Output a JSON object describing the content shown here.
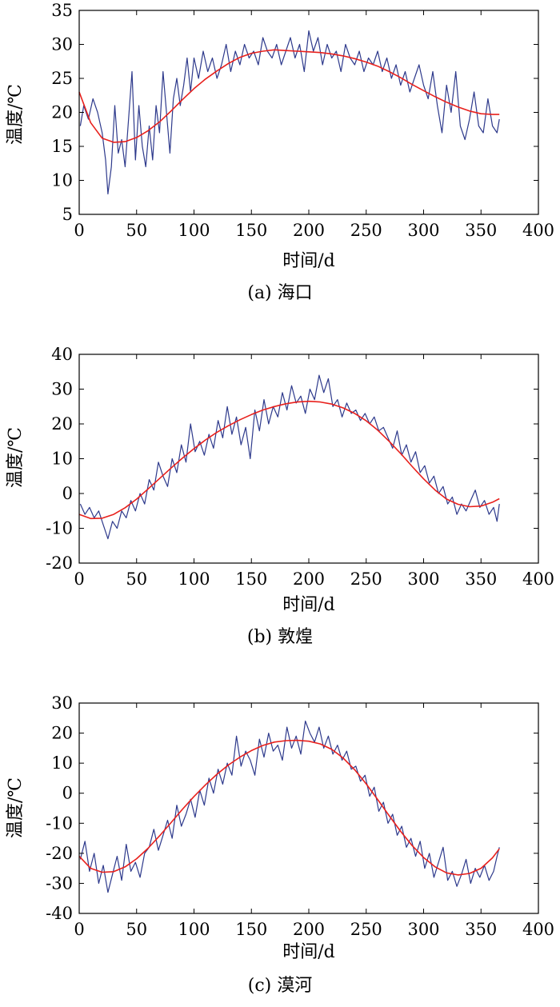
{
  "chart_data": [
    {
      "type": "line",
      "caption": "(a) 海口",
      "xlabel": "时间/d",
      "ylabel": "温度/℃",
      "xlim": [
        0,
        400
      ],
      "ylim": [
        5,
        35
      ],
      "xticks": [
        0,
        50,
        100,
        150,
        200,
        250,
        300,
        350,
        400
      ],
      "yticks": [
        5,
        10,
        15,
        20,
        25,
        30,
        35
      ],
      "grid": false,
      "series": [
        {
          "style": "daily",
          "color": "#2e3a8c",
          "x": [
            1,
            4,
            8,
            12,
            16,
            20,
            23,
            25,
            28,
            31,
            34,
            37,
            40,
            43,
            46,
            49,
            52,
            55,
            58,
            61,
            64,
            67,
            70,
            73,
            76,
            79,
            82,
            85,
            88,
            91,
            94,
            97,
            100,
            104,
            108,
            112,
            116,
            120,
            124,
            128,
            132,
            136,
            140,
            144,
            148,
            152,
            156,
            160,
            164,
            168,
            172,
            176,
            180,
            184,
            188,
            192,
            196,
            200,
            204,
            208,
            212,
            216,
            220,
            224,
            228,
            232,
            236,
            240,
            244,
            248,
            252,
            256,
            260,
            264,
            268,
            272,
            276,
            280,
            284,
            288,
            292,
            296,
            300,
            304,
            308,
            312,
            316,
            320,
            324,
            328,
            332,
            336,
            340,
            344,
            348,
            352,
            356,
            360,
            364,
            366
          ],
          "y": [
            18,
            21,
            19,
            22,
            20,
            17,
            13,
            8,
            12,
            21,
            14,
            16,
            12,
            19,
            26,
            13,
            21,
            15,
            12,
            18,
            13,
            21,
            17,
            26,
            20,
            14,
            22,
            25,
            21,
            24,
            28,
            23,
            28,
            25,
            29,
            26,
            28,
            25,
            27,
            30,
            26,
            29,
            27,
            30,
            28,
            29,
            27,
            31,
            29,
            28,
            30,
            27,
            29,
            31,
            28,
            30,
            26,
            32,
            29,
            31,
            27,
            30,
            28,
            29,
            26,
            30,
            28,
            27,
            29,
            26,
            28,
            27,
            29,
            26,
            28,
            25,
            27,
            24,
            26,
            23,
            25,
            27,
            24,
            22,
            26,
            21,
            17,
            24,
            20,
            26,
            18,
            16,
            19,
            23,
            18,
            17,
            22,
            18,
            17,
            19
          ]
        },
        {
          "style": "fit",
          "color": "#e8201c",
          "x": [
            0,
            10,
            20,
            30,
            40,
            50,
            60,
            70,
            80,
            90,
            100,
            110,
            120,
            130,
            140,
            150,
            160,
            170,
            180,
            190,
            200,
            210,
            220,
            230,
            240,
            250,
            260,
            270,
            280,
            290,
            300,
            310,
            320,
            330,
            340,
            350,
            360,
            366
          ],
          "y": [
            23,
            18.5,
            16.2,
            15.6,
            15.7,
            16.3,
            17.3,
            18.6,
            20.2,
            21.9,
            23.5,
            24.9,
            26.1,
            27.2,
            28.1,
            28.7,
            29.0,
            29.2,
            29.1,
            29.0,
            28.9,
            28.8,
            28.6,
            28.3,
            27.9,
            27.4,
            26.8,
            26.0,
            25.1,
            24.1,
            23.2,
            22.3,
            21.5,
            20.8,
            20.2,
            19.8,
            19.7,
            19.7
          ]
        }
      ]
    },
    {
      "type": "line",
      "caption": "(b) 敦煌",
      "xlabel": "时间/d",
      "ylabel": "温度/℃",
      "xlim": [
        0,
        400
      ],
      "ylim": [
        -20,
        40
      ],
      "xticks": [
        0,
        50,
        100,
        150,
        200,
        250,
        300,
        350,
        400
      ],
      "yticks": [
        -20,
        -10,
        0,
        10,
        20,
        30,
        40
      ],
      "grid": false,
      "series": [
        {
          "style": "daily",
          "color": "#2e3a8c",
          "x": [
            1,
            5,
            9,
            13,
            17,
            21,
            25,
            29,
            33,
            37,
            41,
            45,
            49,
            53,
            57,
            61,
            65,
            69,
            73,
            77,
            81,
            85,
            89,
            93,
            97,
            101,
            105,
            109,
            113,
            117,
            121,
            125,
            129,
            133,
            137,
            141,
            145,
            149,
            153,
            157,
            161,
            165,
            169,
            173,
            177,
            181,
            185,
            189,
            193,
            197,
            201,
            205,
            209,
            213,
            217,
            221,
            225,
            229,
            233,
            237,
            241,
            245,
            249,
            253,
            257,
            261,
            265,
            269,
            273,
            277,
            281,
            285,
            289,
            293,
            297,
            301,
            305,
            309,
            313,
            317,
            321,
            325,
            329,
            333,
            337,
            341,
            345,
            349,
            353,
            357,
            361,
            364,
            366
          ],
          "y": [
            -3,
            -6,
            -4,
            -7,
            -5,
            -9,
            -13,
            -8,
            -10,
            -5,
            -7,
            -2,
            -5,
            0,
            -3,
            4,
            1,
            9,
            5,
            2,
            10,
            6,
            14,
            9,
            20,
            12,
            15,
            11,
            17,
            13,
            21,
            16,
            25,
            17,
            22,
            14,
            19,
            10,
            24,
            18,
            27,
            20,
            25,
            22,
            29,
            24,
            31,
            26,
            28,
            23,
            30,
            27,
            34,
            29,
            33,
            25,
            27,
            22,
            26,
            23,
            24,
            21,
            23,
            20,
            22,
            18,
            19,
            16,
            13,
            18,
            11,
            14,
            9,
            12,
            6,
            8,
            3,
            5,
            0,
            2,
            -3,
            -1,
            -6,
            -3,
            -5,
            -2,
            1,
            -4,
            -2,
            -6,
            -4,
            -8,
            -3
          ]
        },
        {
          "style": "fit",
          "color": "#e8201c",
          "x": [
            0,
            10,
            20,
            30,
            40,
            50,
            60,
            70,
            80,
            90,
            100,
            110,
            120,
            130,
            140,
            150,
            160,
            170,
            180,
            190,
            200,
            210,
            220,
            230,
            240,
            250,
            260,
            270,
            280,
            290,
            300,
            310,
            320,
            330,
            340,
            350,
            360,
            366
          ],
          "y": [
            -6,
            -7.2,
            -7.1,
            -6.0,
            -4.1,
            -1.6,
            1.3,
            4.3,
            7.3,
            10.2,
            12.9,
            15.4,
            17.6,
            19.5,
            21.2,
            22.7,
            24.0,
            25.0,
            25.8,
            26.3,
            26.5,
            26.3,
            25.7,
            24.6,
            23.0,
            20.9,
            18.2,
            15.0,
            11.5,
            7.8,
            4.2,
            1.0,
            -1.6,
            -3.1,
            -3.8,
            -3.6,
            -2.5,
            -1.5
          ]
        }
      ]
    },
    {
      "type": "line",
      "caption": "(c) 漠河",
      "xlabel": "时间/d",
      "ylabel": "温度/℃",
      "xlim": [
        0,
        400
      ],
      "ylim": [
        -40,
        30
      ],
      "xticks": [
        0,
        50,
        100,
        150,
        200,
        250,
        300,
        350,
        400
      ],
      "yticks": [
        -40,
        -30,
        -20,
        -10,
        0,
        10,
        20,
        30
      ],
      "grid": false,
      "series": [
        {
          "style": "daily",
          "color": "#2e3a8c",
          "x": [
            1,
            5,
            9,
            13,
            17,
            21,
            25,
            29,
            33,
            37,
            41,
            45,
            49,
            53,
            57,
            61,
            65,
            69,
            73,
            77,
            81,
            85,
            89,
            93,
            97,
            101,
            105,
            109,
            113,
            117,
            121,
            125,
            129,
            133,
            137,
            141,
            145,
            149,
            153,
            157,
            161,
            165,
            169,
            173,
            177,
            181,
            185,
            189,
            193,
            197,
            201,
            205,
            209,
            213,
            217,
            221,
            225,
            229,
            233,
            237,
            241,
            245,
            249,
            253,
            257,
            261,
            265,
            269,
            273,
            277,
            281,
            285,
            289,
            293,
            297,
            301,
            305,
            309,
            313,
            317,
            321,
            325,
            329,
            333,
            337,
            341,
            345,
            349,
            353,
            357,
            361,
            364,
            366
          ],
          "y": [
            -22,
            -16,
            -26,
            -20,
            -30,
            -24,
            -33,
            -27,
            -21,
            -29,
            -17,
            -26,
            -23,
            -28,
            -20,
            -18,
            -12,
            -19,
            -14,
            -9,
            -15,
            -4,
            -11,
            -7,
            -2,
            -8,
            1,
            -4,
            5,
            0,
            8,
            3,
            10,
            6,
            19,
            9,
            14,
            11,
            6,
            18,
            12,
            20,
            14,
            16,
            11,
            22,
            15,
            19,
            13,
            24,
            20,
            17,
            22,
            15,
            19,
            13,
            16,
            11,
            14,
            8,
            9,
            4,
            6,
            -1,
            2,
            -6,
            -3,
            -10,
            -7,
            -14,
            -11,
            -18,
            -15,
            -21,
            -16,
            -25,
            -20,
            -28,
            -23,
            -18,
            -29,
            -26,
            -31,
            -27,
            -22,
            -30,
            -25,
            -28,
            -24,
            -29,
            -26,
            -21,
            -18
          ]
        },
        {
          "style": "fit",
          "color": "#e8201c",
          "x": [
            0,
            10,
            20,
            30,
            40,
            50,
            60,
            70,
            80,
            90,
            100,
            110,
            120,
            130,
            140,
            150,
            160,
            170,
            180,
            190,
            200,
            210,
            220,
            230,
            240,
            250,
            260,
            270,
            280,
            290,
            300,
            310,
            320,
            330,
            340,
            350,
            360,
            366
          ],
          "y": [
            -21,
            -25,
            -26.3,
            -26.1,
            -24.5,
            -21.8,
            -18.3,
            -14.2,
            -9.8,
            -5.3,
            -1.1,
            2.8,
            6.3,
            9.4,
            12.0,
            14.2,
            15.9,
            17.0,
            17.5,
            17.6,
            17.3,
            16.4,
            14.6,
            11.7,
            7.8,
            3.1,
            -2.1,
            -7.5,
            -12.7,
            -17.4,
            -21.4,
            -24.5,
            -26.5,
            -27.2,
            -26.7,
            -25.0,
            -21.5,
            -18.5
          ]
        }
      ]
    }
  ]
}
